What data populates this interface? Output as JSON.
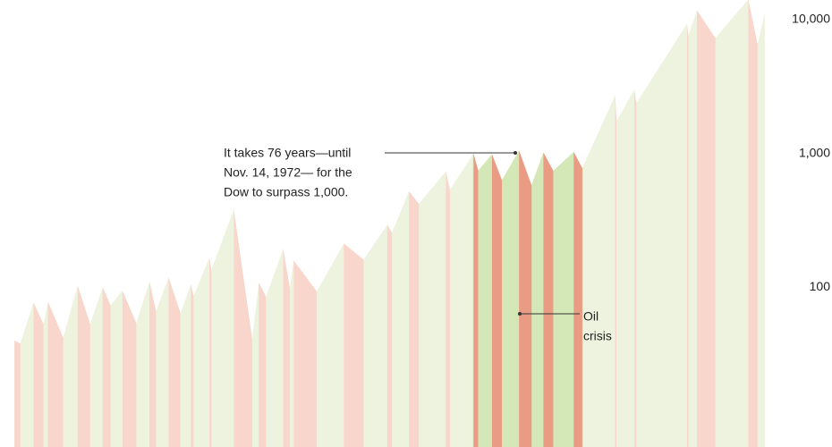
{
  "chart_data": {
    "type": "area",
    "log_scale": true,
    "x": [
      1896.4,
      1897.3,
      1899.3,
      1900.8,
      1901.5,
      1903.8,
      1906,
      1907.9,
      1909.8,
      1911,
      1912.8,
      1914.9,
      1916.9,
      1917.9,
      1919.8,
      1921.6,
      1923.2,
      1923.6,
      1926,
      1926.3,
      1929.7,
      1932.5,
      1933.5,
      1934.6,
      1937.2,
      1938.2,
      1938.8,
      1942.3,
      1946.4,
      1949.4,
      1953,
      1953.7,
      1956.3,
      1957.8,
      1961.9,
      1962.5,
      1966.1,
      1966.8,
      1968.9,
      1970.4,
      1973,
      1974.9,
      1976.7,
      1978.2,
      1981.3,
      1982.6,
      1987.6,
      1987.8,
      1990.5,
      1990.8,
      1998.5,
      1998.7,
      2000,
      2002.8,
      2007.8,
      2009.2,
      2010.3
    ],
    "values": [
      40,
      38,
      77,
      53,
      78,
      42,
      103,
      53,
      100,
      73,
      94,
      54,
      110,
      66,
      119,
      64,
      105,
      86,
      166,
      135,
      381,
      41,
      108,
      85,
      194,
      99,
      158,
      93,
      212,
      161,
      293,
      255,
      521,
      420,
      734,
      536,
      995,
      744,
      985,
      631,
      1051,
      578,
      1014,
      742,
      1024,
      777,
      2722,
      1739,
      2999,
      2365,
      9337,
      7539,
      11722,
      7286,
      14164,
      6547,
      11205
    ],
    "bear_periods": [
      [
        1896.4,
        1897.3
      ],
      [
        1899.3,
        1900.8
      ],
      [
        1901.5,
        1903.8
      ],
      [
        1906,
        1907.9
      ],
      [
        1909.8,
        1911
      ],
      [
        1912.8,
        1914.9
      ],
      [
        1916.9,
        1917.9
      ],
      [
        1919.8,
        1921.6
      ],
      [
        1923.2,
        1923.6
      ],
      [
        1926,
        1926.3
      ],
      [
        1929.7,
        1932.5
      ],
      [
        1933.5,
        1934.6
      ],
      [
        1937.2,
        1938.2
      ],
      [
        1938.8,
        1942.3
      ],
      [
        1946.4,
        1949.4
      ],
      [
        1953,
        1953.7
      ],
      [
        1956.3,
        1957.8
      ],
      [
        1961.9,
        1962.5
      ],
      [
        1966.1,
        1966.8
      ],
      [
        1968.9,
        1970.4
      ],
      [
        1973,
        1974.9
      ],
      [
        1976.7,
        1978.2
      ],
      [
        1981.3,
        1982.6
      ],
      [
        1987.6,
        1987.8
      ],
      [
        1990.5,
        1990.8
      ],
      [
        1998.5,
        1998.7
      ],
      [
        2000,
        2002.8
      ],
      [
        2007.8,
        2009.2
      ]
    ],
    "highlight": [
      1966,
      1982.7
    ],
    "colors": {
      "bull": "#eef3df",
      "bear": "#f9d6cc",
      "highlight_bull": "#d4e7b6",
      "highlight_bear": "#e99c83"
    },
    "xlim": [
      1895.3,
      2011
    ],
    "ylim": [
      6.4,
      14000
    ],
    "yticks": [
      100,
      {
        "value": 1000,
        "label": "1,000"
      },
      {
        "value": 10000,
        "label": "10,000"
      }
    ],
    "annotations": [
      {
        "lines": [
          "It takes 76 years—until",
          "Nov. 14, 1972— for the",
          "Dow to surpass 1,000."
        ]
      },
      {
        "lines": [
          "Oil",
          "crisis"
        ]
      }
    ]
  }
}
